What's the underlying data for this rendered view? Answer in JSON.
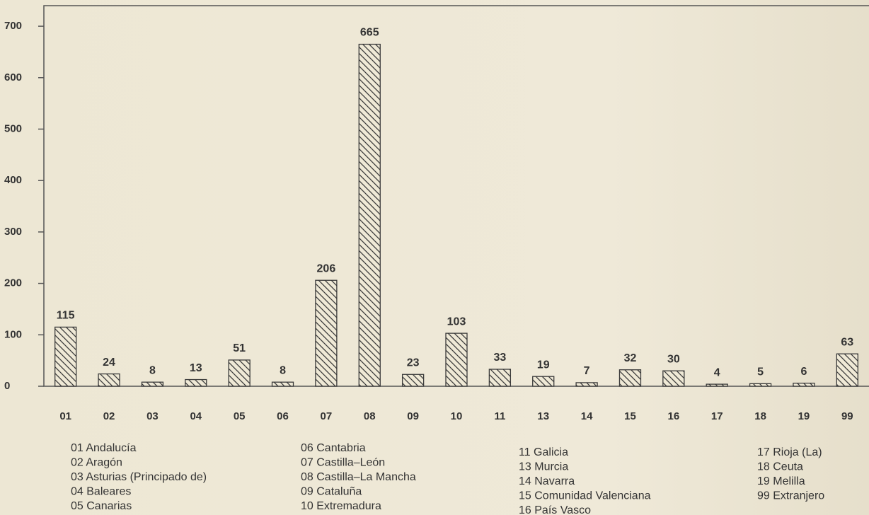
{
  "chart_data": {
    "type": "bar",
    "categories": [
      "01",
      "02",
      "03",
      "04",
      "05",
      "06",
      "07",
      "08",
      "09",
      "10",
      "11",
      "13",
      "14",
      "15",
      "16",
      "17",
      "18",
      "19",
      "99"
    ],
    "values": [
      115,
      24,
      8,
      13,
      51,
      8,
      206,
      665,
      23,
      103,
      33,
      19,
      7,
      32,
      30,
      4,
      5,
      6,
      63
    ],
    "color": "#3a3a3a",
    "ylim": [
      0,
      740
    ],
    "yticks": [
      0,
      100,
      200,
      300,
      400,
      500,
      600,
      700
    ],
    "legend": [
      [
        "01 Andalucía",
        "02 Aragón",
        "03 Asturias (Principado de)",
        "04 Baleares",
        "05 Canarias"
      ],
      [
        "06 Cantabria",
        "07 Castilla–León",
        "08 Castilla–La Mancha",
        "09 Cataluña",
        "10 Extremadura"
      ],
      [
        "11 Galicia",
        "13 Murcia",
        "14 Navarra",
        "15 Comunidad Valenciana",
        "16 País Vasco"
      ],
      [
        "17 Rioja (La)",
        "18 Ceuta",
        "19 Melilla",
        "99 Extranjero"
      ]
    ]
  }
}
